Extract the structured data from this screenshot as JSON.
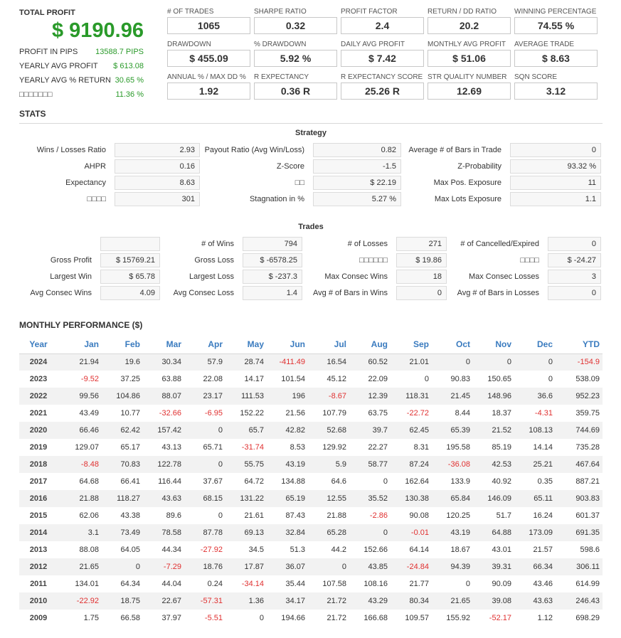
{
  "summary": {
    "total_label": "TOTAL PROFIT",
    "total_value": "$ 9190.96",
    "rows": [
      {
        "label": "PROFIT IN PIPS",
        "value": "13588.7 PIPS"
      },
      {
        "label": "YEARLY AVG PROFIT",
        "value": "$ 613.08"
      },
      {
        "label": "YEARLY AVG % RETURN",
        "value": "30.65 %"
      },
      {
        "label": "□□□□□□□",
        "value": "11.36 %"
      }
    ]
  },
  "metrics": [
    {
      "label": "# OF TRADES",
      "value": "1065"
    },
    {
      "label": "SHARPE RATIO",
      "value": "0.32"
    },
    {
      "label": "PROFIT FACTOR",
      "value": "2.4"
    },
    {
      "label": "RETURN / DD RATIO",
      "value": "20.2"
    },
    {
      "label": "WINNING PERCENTAGE",
      "value": "74.55 %"
    },
    {
      "label": "DRAWDOWN",
      "value": "$ 455.09"
    },
    {
      "label": "% DRAWDOWN",
      "value": "5.92 %"
    },
    {
      "label": "DAILY AVG PROFIT",
      "value": "$ 7.42"
    },
    {
      "label": "MONTHLY AVG PROFIT",
      "value": "$ 51.06"
    },
    {
      "label": "AVERAGE TRADE",
      "value": "$ 8.63"
    },
    {
      "label": "ANNUAL % / MAX DD %",
      "value": "1.92"
    },
    {
      "label": "R EXPECTANCY",
      "value": "0.36 R"
    },
    {
      "label": "R EXPECTANCY SCORE",
      "value": "25.26 R"
    },
    {
      "label": "STR QUALITY NUMBER",
      "value": "12.69"
    },
    {
      "label": "SQN SCORE",
      "value": "3.12"
    }
  ],
  "stats": {
    "title": "STATS",
    "strategy": {
      "title": "Strategy",
      "col1": [
        {
          "label": "Wins / Losses Ratio",
          "value": "2.93"
        },
        {
          "label": "AHPR",
          "value": "0.16"
        },
        {
          "label": "Expectancy",
          "value": "8.63"
        },
        {
          "label": "□□□□",
          "value": "301"
        }
      ],
      "col2": [
        {
          "label": "Payout Ratio (Avg Win/Loss)",
          "value": "0.82"
        },
        {
          "label": "Z-Score",
          "value": "-1.5"
        },
        {
          "label": "□□",
          "value": "$ 22.19"
        },
        {
          "label": "Stagnation in %",
          "value": "5.27 %"
        }
      ],
      "col3": [
        {
          "label": "Average # of Bars in Trade",
          "value": "0"
        },
        {
          "label": "Z-Probability",
          "value": "93.32 %"
        },
        {
          "label": "Max Pos. Exposure",
          "value": "11"
        },
        {
          "label": "Max Lots Exposure",
          "value": "1.1"
        }
      ]
    },
    "trades": {
      "title": "Trades",
      "col1": [
        {
          "label": "",
          "value": ""
        },
        {
          "label": "Gross Profit",
          "value": "$ 15769.21"
        },
        {
          "label": "Largest Win",
          "value": "$ 65.78"
        },
        {
          "label": "Avg Consec Wins",
          "value": "4.09"
        }
      ],
      "col2": [
        {
          "label": "# of Wins",
          "value": "794"
        },
        {
          "label": "Gross Loss",
          "value": "$ -6578.25"
        },
        {
          "label": "Largest Loss",
          "value": "$ -237.3"
        },
        {
          "label": "Avg Consec Loss",
          "value": "1.4"
        }
      ],
      "col3": [
        {
          "label": "# of Losses",
          "value": "271"
        },
        {
          "label": "□□□□□□",
          "value": "$ 19.86"
        },
        {
          "label": "Max Consec Wins",
          "value": "18"
        },
        {
          "label": "Avg # of Bars in Wins",
          "value": "0"
        }
      ],
      "col4": [
        {
          "label": "# of Cancelled/Expired",
          "value": "0"
        },
        {
          "label": "□□□□",
          "value": "$ -24.27"
        },
        {
          "label": "Max Consec Losses",
          "value": "3"
        },
        {
          "label": "Avg # of Bars in Losses",
          "value": "0"
        }
      ]
    }
  },
  "monthly": {
    "title": "MONTHLY PERFORMANCE ($)",
    "headers": [
      "Year",
      "Jan",
      "Feb",
      "Mar",
      "Apr",
      "May",
      "Jun",
      "Jul",
      "Aug",
      "Sep",
      "Oct",
      "Nov",
      "Dec",
      "YTD"
    ],
    "rows": [
      [
        "2024",
        "21.94",
        "19.6",
        "30.34",
        "57.9",
        "28.74",
        "-411.49",
        "16.54",
        "60.52",
        "21.01",
        "0",
        "0",
        "0",
        "-154.9"
      ],
      [
        "2023",
        "-9.52",
        "37.25",
        "63.88",
        "22.08",
        "14.17",
        "101.54",
        "45.12",
        "22.09",
        "0",
        "90.83",
        "150.65",
        "0",
        "538.09"
      ],
      [
        "2022",
        "99.56",
        "104.86",
        "88.07",
        "23.17",
        "111.53",
        "196",
        "-8.67",
        "12.39",
        "118.31",
        "21.45",
        "148.96",
        "36.6",
        "952.23"
      ],
      [
        "2021",
        "43.49",
        "10.77",
        "-32.66",
        "-6.95",
        "152.22",
        "21.56",
        "107.79",
        "63.75",
        "-22.72",
        "8.44",
        "18.37",
        "-4.31",
        "359.75"
      ],
      [
        "2020",
        "66.46",
        "62.42",
        "157.42",
        "0",
        "65.7",
        "42.82",
        "52.68",
        "39.7",
        "62.45",
        "65.39",
        "21.52",
        "108.13",
        "744.69"
      ],
      [
        "2019",
        "129.07",
        "65.17",
        "43.13",
        "65.71",
        "-31.74",
        "8.53",
        "129.92",
        "22.27",
        "8.31",
        "195.58",
        "85.19",
        "14.14",
        "735.28"
      ],
      [
        "2018",
        "-8.48",
        "70.83",
        "122.78",
        "0",
        "55.75",
        "43.19",
        "5.9",
        "58.77",
        "87.24",
        "-36.08",
        "42.53",
        "25.21",
        "467.64"
      ],
      [
        "2017",
        "64.68",
        "66.41",
        "116.44",
        "37.67",
        "64.72",
        "134.88",
        "64.6",
        "0",
        "162.64",
        "133.9",
        "40.92",
        "0.35",
        "887.21"
      ],
      [
        "2016",
        "21.88",
        "118.27",
        "43.63",
        "68.15",
        "131.22",
        "65.19",
        "12.55",
        "35.52",
        "130.38",
        "65.84",
        "146.09",
        "65.11",
        "903.83"
      ],
      [
        "2015",
        "62.06",
        "43.38",
        "89.6",
        "0",
        "21.61",
        "87.43",
        "21.88",
        "-2.86",
        "90.08",
        "120.25",
        "51.7",
        "16.24",
        "601.37"
      ],
      [
        "2014",
        "3.1",
        "73.49",
        "78.58",
        "87.78",
        "69.13",
        "32.84",
        "65.28",
        "0",
        "-0.01",
        "43.19",
        "64.88",
        "173.09",
        "691.35"
      ],
      [
        "2013",
        "88.08",
        "64.05",
        "44.34",
        "-27.92",
        "34.5",
        "51.3",
        "44.2",
        "152.66",
        "64.14",
        "18.67",
        "43.01",
        "21.57",
        "598.6"
      ],
      [
        "2012",
        "21.65",
        "0",
        "-7.29",
        "18.76",
        "17.87",
        "36.07",
        "0",
        "43.85",
        "-24.84",
        "94.39",
        "39.31",
        "66.34",
        "306.11"
      ],
      [
        "2011",
        "134.01",
        "64.34",
        "44.04",
        "0.24",
        "-34.14",
        "35.44",
        "107.58",
        "108.16",
        "21.77",
        "0",
        "90.09",
        "43.46",
        "614.99"
      ],
      [
        "2010",
        "-22.92",
        "18.75",
        "22.67",
        "-57.31",
        "1.36",
        "34.17",
        "21.72",
        "43.29",
        "80.34",
        "21.65",
        "39.08",
        "43.63",
        "246.43"
      ],
      [
        "2009",
        "1.75",
        "66.58",
        "37.97",
        "-5.51",
        "0",
        "194.66",
        "21.72",
        "166.68",
        "109.57",
        "155.92",
        "-52.17",
        "1.12",
        "698.29"
      ]
    ]
  }
}
